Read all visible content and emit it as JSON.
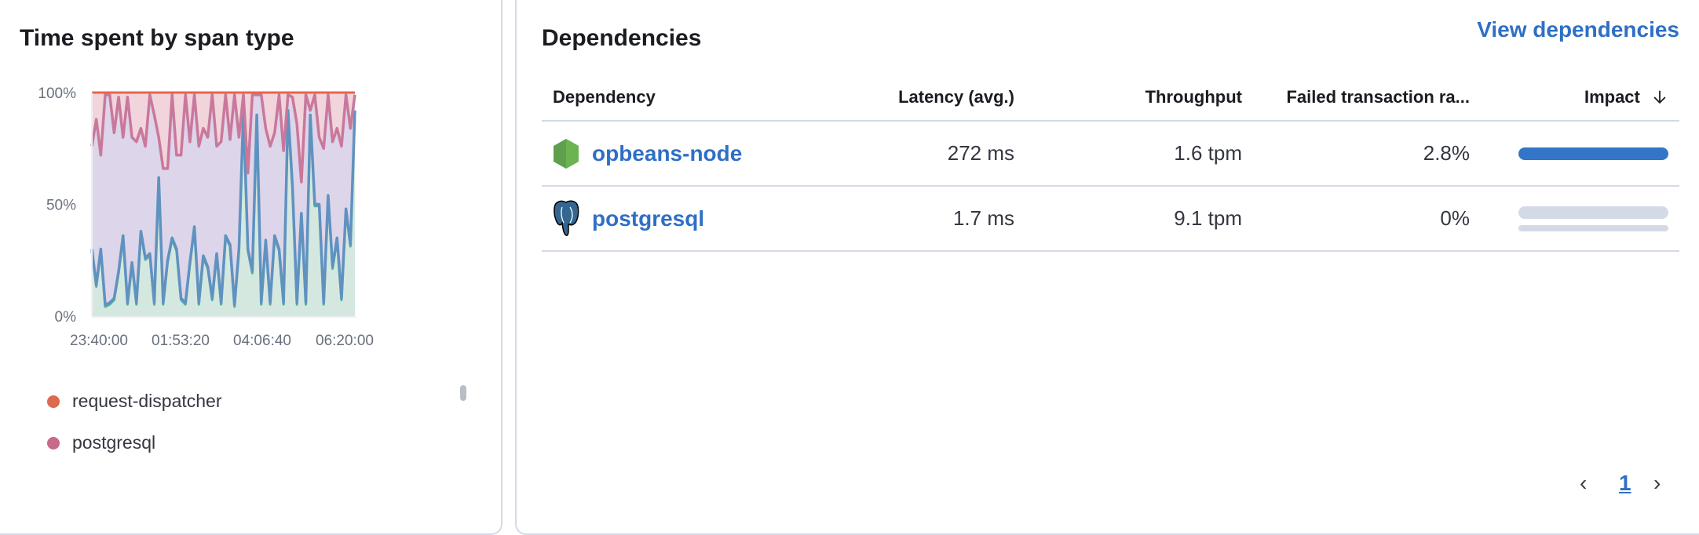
{
  "left_panel": {
    "title": "Time spent by span type",
    "legend": [
      {
        "label": "request-dispatcher",
        "color": "#da6b4f"
      },
      {
        "label": "postgresql",
        "color": "#c86a8a"
      }
    ]
  },
  "chart_data": {
    "type": "area",
    "stacked": "percent",
    "ylim": [
      0,
      100
    ],
    "y_ticks": [
      "0%",
      "50%",
      "100%"
    ],
    "x_ticks": [
      "23:40:00",
      "01:53:20",
      "04:06:40",
      "06:20:00"
    ],
    "x_range": [
      "23:28:30",
      "06:36:50"
    ],
    "grid": "horizontal dashed at 50%",
    "legend_placement": "bottom",
    "series": [
      {
        "color": "#54b399",
        "line_color": "#6092c0",
        "values": [
          30,
          14,
          30,
          5,
          6,
          8,
          20,
          36,
          6,
          24,
          6,
          38,
          26,
          28,
          6,
          62,
          6,
          25,
          35,
          30,
          8,
          6,
          24,
          40,
          6,
          27,
          22,
          8,
          28,
          6,
          36,
          32,
          5,
          30,
          92,
          30,
          20,
          90,
          6,
          34,
          6,
          36,
          30,
          6,
          92,
          58,
          6,
          46,
          6,
          90,
          50,
          50,
          6,
          54,
          22,
          35,
          8,
          48,
          32,
          92
        ]
      },
      {
        "color": "#9170b8",
        "values": [
          46,
          74,
          42,
          94,
          93,
          74,
          78,
          44,
          92,
          56,
          72,
          46,
          50,
          71,
          84,
          18,
          60,
          41,
          64,
          42,
          64,
          93,
          54,
          59,
          70,
          57,
          58,
          91,
          48,
          72,
          63,
          47,
          94,
          50,
          7,
          34,
          79,
          9,
          93,
          50,
          70,
          46,
          69,
          68,
          7,
          40,
          80,
          14,
          93,
          2,
          49,
          30,
          69,
          45,
          56,
          49,
          68,
          51,
          52,
          7
        ]
      },
      {
        "name": "postgresql",
        "color": "#d36086",
        "values": [
          23.5,
          11.5,
          27.5,
          0.5,
          0.5,
          17.5,
          1.5,
          19.5,
          1.5,
          19.5,
          21.5,
          15.5,
          23.5,
          0.5,
          9.5,
          19.5,
          33.5,
          33.5,
          0.5,
          27.5,
          27.5,
          0.5,
          21.5,
          0.5,
          23.5,
          15.5,
          19.5,
          0.5,
          23.5,
          21.5,
          0.5,
          20.5,
          0.5,
          19.5,
          0.5,
          35.5,
          0.5,
          0.5,
          0.5,
          15.5,
          23.5,
          17.5,
          0.5,
          25.5,
          0.5,
          1.5,
          13.5,
          39.5,
          0.5,
          7.5,
          0.5,
          19.5,
          24.5,
          0.5,
          21.5,
          15.5,
          23.5,
          0.5,
          15.5,
          0.5
        ]
      },
      {
        "name": "request-dispatcher",
        "color": "#e7664c",
        "values": [
          0.5,
          0.5,
          0.5,
          0.5,
          0.5,
          0.5,
          0.5,
          0.5,
          0.5,
          0.5,
          0.5,
          0.5,
          0.5,
          0.5,
          0.5,
          0.5,
          0.5,
          0.5,
          0.5,
          0.5,
          0.5,
          0.5,
          0.5,
          0.5,
          0.5,
          0.5,
          0.5,
          0.5,
          0.5,
          0.5,
          0.5,
          0.5,
          0.5,
          0.5,
          0.5,
          0.5,
          0.5,
          0.5,
          0.5,
          0.5,
          0.5,
          0.5,
          0.5,
          0.5,
          0.5,
          0.5,
          0.5,
          0.5,
          0.5,
          0.5,
          0.5,
          0.5,
          0.5,
          0.5,
          0.5,
          0.5,
          0.5,
          0.5,
          0.5,
          0.5
        ]
      }
    ]
  },
  "right_panel": {
    "title": "Dependencies",
    "view_link": "View dependencies",
    "columns": [
      "Dependency",
      "Latency (avg.)",
      "Throughput",
      "Failed transaction ra...",
      "Impact"
    ],
    "sort_icon": "arrow-down-icon",
    "rows": [
      {
        "name": "opbeans-node",
        "icon": "nodejs-icon",
        "latency": "272 ms",
        "throughput": "1.6 tpm",
        "failed_rate": "2.8%",
        "impact": 100
      },
      {
        "name": "postgresql",
        "icon": "postgresql-icon",
        "latency": "1.7 ms",
        "throughput": "9.1 tpm",
        "failed_rate": "0%",
        "impact": 1
      }
    ],
    "pagination": {
      "current": "1",
      "prev": "‹",
      "next": "›"
    },
    "accent": "#2f6fc5"
  }
}
